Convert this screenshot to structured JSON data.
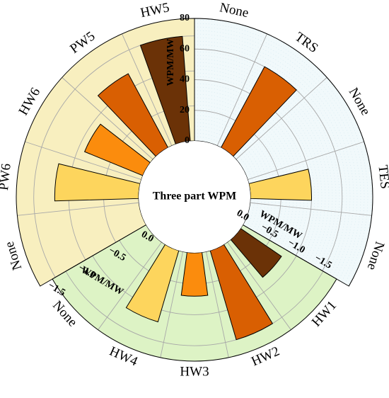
{
  "chart_data": {
    "type": "bar",
    "title": "Three part WPM",
    "panels": [
      {
        "id": "top-right",
        "background": "#f1f9fb",
        "categories": [
          "None",
          "TRS",
          "None",
          "TES",
          "None"
        ],
        "values": [
          0,
          60,
          0,
          40,
          0
        ],
        "bar_colors": [
          "",
          "#d95f02",
          "",
          "#fdd55d",
          ""
        ],
        "axis": {
          "label": "WPM/MW",
          "ticks": [
            0,
            20,
            40,
            60,
            80
          ],
          "tick_labels": [
            "0",
            "20",
            "40",
            "60",
            "80"
          ],
          "range": [
            0,
            80
          ]
        }
      },
      {
        "id": "top-left",
        "background": "#f8efbf",
        "categories": [
          "HW5",
          "PW5",
          "HW6",
          "PW6",
          "None"
        ],
        "values": [
          -1.5,
          -1.2,
          -0.9,
          -1.2,
          0
        ],
        "bar_colors": [
          "#6b3207",
          "#d95f02",
          "#fb8c0d",
          "#fdd55d",
          ""
        ],
        "axis": {
          "label": "WPM/MW",
          "ticks": [
            -1.5,
            -1.0,
            -0.5,
            0.0
          ],
          "tick_labels": [
            "−1.5",
            "−1.0",
            "−0.5",
            "0.0"
          ],
          "range": [
            0,
            -1.75
          ]
        }
      },
      {
        "id": "bottom",
        "background": "#ddf3c5",
        "categories": [
          "HW1",
          "HW2",
          "HW3",
          "HW4",
          "None"
        ],
        "values": [
          -0.8,
          -1.5,
          -0.7,
          -1.2,
          0
        ],
        "bar_colors": [
          "#6b3207",
          "#d95f02",
          "#fb8c0d",
          "#fdd55d",
          ""
        ],
        "axis": {
          "label": "WPM/MW",
          "ticks": [
            0.0,
            -0.5,
            -1.0,
            -1.5
          ],
          "tick_labels": [
            "0.0",
            "−0.5",
            "−1.0",
            "−1.5"
          ],
          "range": [
            0,
            -1.75
          ]
        }
      }
    ]
  }
}
